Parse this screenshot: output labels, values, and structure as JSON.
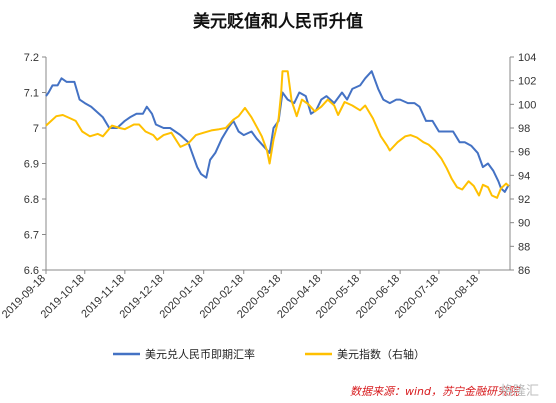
{
  "chart_data": {
    "type": "line",
    "title": "美元贬值和人民币升值",
    "x": [
      "2019-09-18",
      "2019-10-18",
      "2019-11-18",
      "2019-12-18",
      "2020-01-18",
      "2020-02-18",
      "2020-03-18",
      "2020-04-18",
      "2020-05-18",
      "2020-06-18",
      "2020-07-18",
      "2020-08-18"
    ],
    "left_axis": {
      "ylim": [
        6.6,
        7.2
      ],
      "ticks": [
        "6.6",
        "6.7",
        "6.8",
        "6.9",
        "7",
        "7.1",
        "7.2"
      ]
    },
    "right_axis": {
      "ylim": [
        86,
        104
      ],
      "ticks": [
        "86",
        "88",
        "90",
        "92",
        "94",
        "96",
        "98",
        "100",
        "102",
        "104"
      ]
    },
    "grid": false,
    "legend_position": "bottom",
    "series": [
      {
        "name": "美元兑人民币即期汇率",
        "axis": "left",
        "color": "#4472c4",
        "points": [
          [
            "2019-09-18",
            7.09
          ],
          [
            "2019-09-20",
            7.1
          ],
          [
            "2019-09-23",
            7.12
          ],
          [
            "2019-09-27",
            7.12
          ],
          [
            "2019-09-30",
            7.14
          ],
          [
            "2019-10-04",
            7.13
          ],
          [
            "2019-10-10",
            7.13
          ],
          [
            "2019-10-14",
            7.08
          ],
          [
            "2019-10-18",
            7.07
          ],
          [
            "2019-10-23",
            7.06
          ],
          [
            "2019-10-29",
            7.04
          ],
          [
            "2019-11-01",
            7.03
          ],
          [
            "2019-11-06",
            7.0
          ],
          [
            "2019-11-12",
            7.0
          ],
          [
            "2019-11-18",
            7.02
          ],
          [
            "2019-11-22",
            7.03
          ],
          [
            "2019-11-27",
            7.04
          ],
          [
            "2019-12-02",
            7.04
          ],
          [
            "2019-12-05",
            7.06
          ],
          [
            "2019-12-09",
            7.04
          ],
          [
            "2019-12-12",
            7.01
          ],
          [
            "2019-12-18",
            7.0
          ],
          [
            "2019-12-23",
            7.0
          ],
          [
            "2019-12-31",
            6.98
          ],
          [
            "2020-01-06",
            6.96
          ],
          [
            "2020-01-13",
            6.89
          ],
          [
            "2020-01-16",
            6.87
          ],
          [
            "2020-01-20",
            6.86
          ],
          [
            "2020-01-23",
            6.91
          ],
          [
            "2020-01-27",
            6.93
          ],
          [
            "2020-02-01",
            6.97
          ],
          [
            "2020-02-06",
            7.0
          ],
          [
            "2020-02-10",
            7.02
          ],
          [
            "2020-02-14",
            6.99
          ],
          [
            "2020-02-18",
            6.98
          ],
          [
            "2020-02-24",
            6.99
          ],
          [
            "2020-02-28",
            6.97
          ],
          [
            "2020-03-04",
            6.95
          ],
          [
            "2020-03-09",
            6.93
          ],
          [
            "2020-03-12",
            7.0
          ],
          [
            "2020-03-16",
            7.02
          ],
          [
            "2020-03-19",
            7.1
          ],
          [
            "2020-03-23",
            7.08
          ],
          [
            "2020-03-28",
            7.07
          ],
          [
            "2020-04-01",
            7.1
          ],
          [
            "2020-04-06",
            7.09
          ],
          [
            "2020-04-10",
            7.04
          ],
          [
            "2020-04-14",
            7.05
          ],
          [
            "2020-04-18",
            7.08
          ],
          [
            "2020-04-22",
            7.09
          ],
          [
            "2020-04-28",
            7.07
          ],
          [
            "2020-05-04",
            7.1
          ],
          [
            "2020-05-08",
            7.08
          ],
          [
            "2020-05-12",
            7.11
          ],
          [
            "2020-05-18",
            7.12
          ],
          [
            "2020-05-22",
            7.14
          ],
          [
            "2020-05-27",
            7.16
          ],
          [
            "2020-06-01",
            7.11
          ],
          [
            "2020-06-05",
            7.08
          ],
          [
            "2020-06-10",
            7.07
          ],
          [
            "2020-06-15",
            7.08
          ],
          [
            "2020-06-18",
            7.08
          ],
          [
            "2020-06-24",
            7.07
          ],
          [
            "2020-06-29",
            7.07
          ],
          [
            "2020-07-03",
            7.06
          ],
          [
            "2020-07-08",
            7.02
          ],
          [
            "2020-07-13",
            7.02
          ],
          [
            "2020-07-18",
            6.99
          ],
          [
            "2020-07-24",
            6.99
          ],
          [
            "2020-07-29",
            6.99
          ],
          [
            "2020-08-03",
            6.96
          ],
          [
            "2020-08-07",
            6.96
          ],
          [
            "2020-08-12",
            6.95
          ],
          [
            "2020-08-17",
            6.93
          ],
          [
            "2020-08-21",
            6.89
          ],
          [
            "2020-08-25",
            6.9
          ],
          [
            "2020-08-29",
            6.88
          ],
          [
            "2020-09-02",
            6.85
          ],
          [
            "2020-09-04",
            6.83
          ],
          [
            "2020-09-07",
            6.82
          ],
          [
            "2020-09-10",
            6.84
          ]
        ]
      },
      {
        "name": "美元指数（右轴）",
        "axis": "right",
        "color": "#ffc000",
        "points": [
          [
            "2019-09-18",
            98.2
          ],
          [
            "2019-09-22",
            98.6
          ],
          [
            "2019-09-26",
            99.0
          ],
          [
            "2019-10-01",
            99.1
          ],
          [
            "2019-10-07",
            98.8
          ],
          [
            "2019-10-11",
            98.6
          ],
          [
            "2019-10-16",
            97.7
          ],
          [
            "2019-10-22",
            97.3
          ],
          [
            "2019-10-28",
            97.5
          ],
          [
            "2019-11-01",
            97.3
          ],
          [
            "2019-11-08",
            98.2
          ],
          [
            "2019-11-14",
            98.0
          ],
          [
            "2019-11-18",
            97.9
          ],
          [
            "2019-11-25",
            98.3
          ],
          [
            "2019-11-29",
            98.3
          ],
          [
            "2019-12-04",
            97.7
          ],
          [
            "2019-12-10",
            97.4
          ],
          [
            "2019-12-13",
            97.0
          ],
          [
            "2019-12-18",
            97.4
          ],
          [
            "2019-12-24",
            97.6
          ],
          [
            "2019-12-31",
            96.4
          ],
          [
            "2020-01-06",
            96.7
          ],
          [
            "2020-01-12",
            97.4
          ],
          [
            "2020-01-18",
            97.6
          ],
          [
            "2020-01-24",
            97.8
          ],
          [
            "2020-01-30",
            97.9
          ],
          [
            "2020-02-04",
            98.0
          ],
          [
            "2020-02-10",
            98.7
          ],
          [
            "2020-02-14",
            99.0
          ],
          [
            "2020-02-19",
            99.7
          ],
          [
            "2020-02-24",
            98.9
          ],
          [
            "2020-02-28",
            98.1
          ],
          [
            "2020-03-03",
            97.3
          ],
          [
            "2020-03-07",
            96.1
          ],
          [
            "2020-03-09",
            95.0
          ],
          [
            "2020-03-12",
            97.0
          ],
          [
            "2020-03-16",
            98.8
          ],
          [
            "2020-03-18",
            101.0
          ],
          [
            "2020-03-19",
            102.8
          ],
          [
            "2020-03-23",
            102.8
          ],
          [
            "2020-03-26",
            100.3
          ],
          [
            "2020-03-30",
            99.0
          ],
          [
            "2020-04-03",
            100.4
          ],
          [
            "2020-04-08",
            100.0
          ],
          [
            "2020-04-13",
            99.4
          ],
          [
            "2020-04-18",
            99.8
          ],
          [
            "2020-04-23",
            100.4
          ],
          [
            "2020-04-28",
            99.9
          ],
          [
            "2020-05-01",
            99.1
          ],
          [
            "2020-05-06",
            100.2
          ],
          [
            "2020-05-12",
            99.9
          ],
          [
            "2020-05-18",
            99.5
          ],
          [
            "2020-05-22",
            99.9
          ],
          [
            "2020-05-28",
            98.8
          ],
          [
            "2020-06-03",
            97.3
          ],
          [
            "2020-06-08",
            96.5
          ],
          [
            "2020-06-10",
            96.1
          ],
          [
            "2020-06-16",
            96.8
          ],
          [
            "2020-06-22",
            97.3
          ],
          [
            "2020-06-26",
            97.4
          ],
          [
            "2020-07-01",
            97.2
          ],
          [
            "2020-07-06",
            96.8
          ],
          [
            "2020-07-10",
            96.6
          ],
          [
            "2020-07-15",
            96.1
          ],
          [
            "2020-07-20",
            95.4
          ],
          [
            "2020-07-24",
            94.6
          ],
          [
            "2020-07-28",
            93.7
          ],
          [
            "2020-08-01",
            93.0
          ],
          [
            "2020-08-05",
            92.8
          ],
          [
            "2020-08-10",
            93.5
          ],
          [
            "2020-08-14",
            93.1
          ],
          [
            "2020-08-18",
            92.3
          ],
          [
            "2020-08-21",
            93.2
          ],
          [
            "2020-08-25",
            93.0
          ],
          [
            "2020-08-28",
            92.3
          ],
          [
            "2020-09-01",
            92.1
          ],
          [
            "2020-09-04",
            92.9
          ],
          [
            "2020-09-08",
            93.3
          ],
          [
            "2020-09-10",
            93.1
          ]
        ]
      }
    ],
    "source": "数据来源：wind，苏宁金融研究院",
    "watermark": "格隆汇"
  }
}
